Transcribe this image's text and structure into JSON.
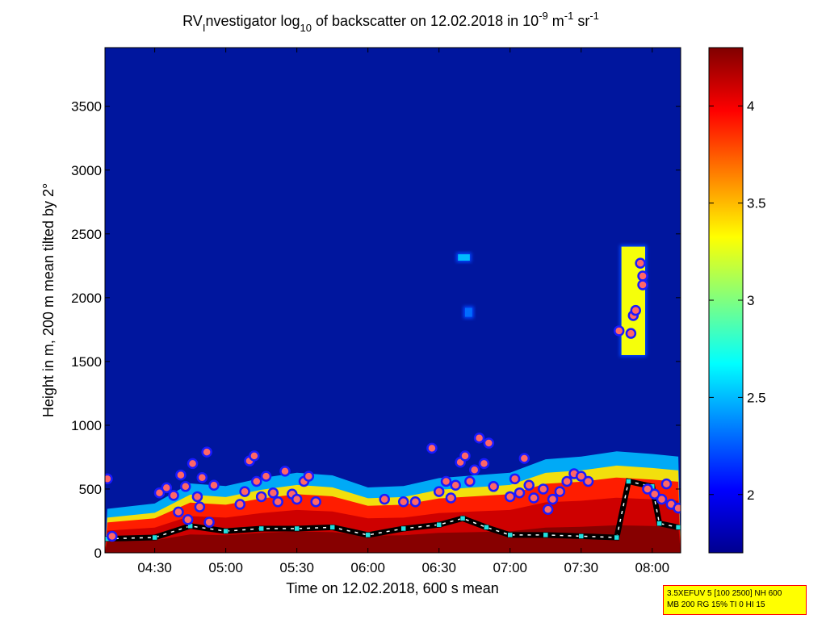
{
  "chart_data": {
    "type": "heatmap",
    "title": {
      "part1": "RV",
      "sub1": "I",
      "part2": "nvestigator log",
      "sub2": "10",
      "part3": " of backscatter on 12.02.2018 in 10",
      "sup1": "-9",
      "part4": " m",
      "sup2": "-1",
      "part5": " sr",
      "sup3": "-1"
    },
    "xlabel": "Time on 12.02.2018, 600 s mean",
    "ylabel": "Height in m, 200 m mean tilted by 2°",
    "xlim": [
      "04:09",
      "08:12"
    ],
    "ylim": [
      0,
      3960
    ],
    "x_ticks": [
      "04:30",
      "05:00",
      "05:30",
      "06:00",
      "06:30",
      "07:00",
      "07:30",
      "08:00"
    ],
    "y_ticks": [
      0,
      500,
      1000,
      1500,
      2000,
      2500,
      3000,
      3500
    ],
    "colorbar": {
      "range": [
        1.7,
        4.3
      ],
      "ticks": [
        "2",
        "2.5",
        "3",
        "3.5",
        "4"
      ],
      "colormap": "jet"
    },
    "background_color": "#00169e",
    "boundary_layer_height_m": [
      {
        "t": "04:10",
        "h": 290
      },
      {
        "t": "04:30",
        "h": 330
      },
      {
        "t": "04:45",
        "h": 480
      },
      {
        "t": "05:00",
        "h": 460
      },
      {
        "t": "05:15",
        "h": 520
      },
      {
        "t": "05:30",
        "h": 560
      },
      {
        "t": "05:45",
        "h": 540
      },
      {
        "t": "06:00",
        "h": 450
      },
      {
        "t": "06:15",
        "h": 460
      },
      {
        "t": "06:30",
        "h": 520
      },
      {
        "t": "06:45",
        "h": 540
      },
      {
        "t": "07:00",
        "h": 560
      },
      {
        "t": "07:15",
        "h": 660
      },
      {
        "t": "07:30",
        "h": 680
      },
      {
        "t": "07:45",
        "h": 720
      },
      {
        "t": "08:00",
        "h": 700
      },
      {
        "t": "08:11",
        "h": 680
      }
    ],
    "layer_markers_m": [
      {
        "t": "04:10",
        "h": 580
      },
      {
        "t": "04:12",
        "h": 130
      },
      {
        "t": "04:32",
        "h": 470
      },
      {
        "t": "04:35",
        "h": 510
      },
      {
        "t": "04:38",
        "h": 450
      },
      {
        "t": "04:40",
        "h": 320
      },
      {
        "t": "04:41",
        "h": 610
      },
      {
        "t": "04:43",
        "h": 520
      },
      {
        "t": "04:44",
        "h": 260
      },
      {
        "t": "04:46",
        "h": 700
      },
      {
        "t": "04:48",
        "h": 440
      },
      {
        "t": "04:49",
        "h": 360
      },
      {
        "t": "04:50",
        "h": 590
      },
      {
        "t": "04:52",
        "h": 790
      },
      {
        "t": "04:53",
        "h": 240
      },
      {
        "t": "04:55",
        "h": 530
      },
      {
        "t": "05:06",
        "h": 380
      },
      {
        "t": "05:08",
        "h": 480
      },
      {
        "t": "05:10",
        "h": 720
      },
      {
        "t": "05:12",
        "h": 760
      },
      {
        "t": "05:13",
        "h": 560
      },
      {
        "t": "05:15",
        "h": 440
      },
      {
        "t": "05:17",
        "h": 600
      },
      {
        "t": "05:20",
        "h": 470
      },
      {
        "t": "05:22",
        "h": 400
      },
      {
        "t": "05:25",
        "h": 640
      },
      {
        "t": "05:28",
        "h": 460
      },
      {
        "t": "05:30",
        "h": 420
      },
      {
        "t": "05:33",
        "h": 560
      },
      {
        "t": "05:35",
        "h": 600
      },
      {
        "t": "05:38",
        "h": 400
      },
      {
        "t": "06:07",
        "h": 420
      },
      {
        "t": "06:15",
        "h": 400
      },
      {
        "t": "06:20",
        "h": 400
      },
      {
        "t": "06:27",
        "h": 820
      },
      {
        "t": "06:30",
        "h": 480
      },
      {
        "t": "06:33",
        "h": 560
      },
      {
        "t": "06:35",
        "h": 430
      },
      {
        "t": "06:37",
        "h": 530
      },
      {
        "t": "06:39",
        "h": 710
      },
      {
        "t": "06:41",
        "h": 760
      },
      {
        "t": "06:43",
        "h": 560
      },
      {
        "t": "06:45",
        "h": 650
      },
      {
        "t": "06:47",
        "h": 900
      },
      {
        "t": "06:49",
        "h": 700
      },
      {
        "t": "06:51",
        "h": 860
      },
      {
        "t": "06:53",
        "h": 520
      },
      {
        "t": "07:00",
        "h": 440
      },
      {
        "t": "07:02",
        "h": 580
      },
      {
        "t": "07:04",
        "h": 470
      },
      {
        "t": "07:06",
        "h": 740
      },
      {
        "t": "07:08",
        "h": 530
      },
      {
        "t": "07:10",
        "h": 430
      },
      {
        "t": "07:14",
        "h": 500
      },
      {
        "t": "07:16",
        "h": 340
      },
      {
        "t": "07:18",
        "h": 420
      },
      {
        "t": "07:21",
        "h": 480
      },
      {
        "t": "07:24",
        "h": 560
      },
      {
        "t": "07:27",
        "h": 620
      },
      {
        "t": "07:30",
        "h": 600
      },
      {
        "t": "07:33",
        "h": 560
      },
      {
        "t": "07:46",
        "h": 1740
      },
      {
        "t": "07:51",
        "h": 1720
      },
      {
        "t": "07:52",
        "h": 1860
      },
      {
        "t": "07:53",
        "h": 1900
      },
      {
        "t": "07:55",
        "h": 2270
      },
      {
        "t": "07:56",
        "h": 2170
      },
      {
        "t": "07:56",
        "h": 2100
      },
      {
        "t": "07:58",
        "h": 500
      },
      {
        "t": "08:01",
        "h": 460
      },
      {
        "t": "08:04",
        "h": 420
      },
      {
        "t": "08:06",
        "h": 540
      },
      {
        "t": "08:08",
        "h": 380
      },
      {
        "t": "08:11",
        "h": 350
      }
    ],
    "cloud_base_m": [
      {
        "t": "04:10",
        "h": 110
      },
      {
        "t": "04:30",
        "h": 120
      },
      {
        "t": "04:45",
        "h": 210
      },
      {
        "t": "05:00",
        "h": 170
      },
      {
        "t": "05:15",
        "h": 190
      },
      {
        "t": "05:30",
        "h": 190
      },
      {
        "t": "05:45",
        "h": 200
      },
      {
        "t": "06:00",
        "h": 140
      },
      {
        "t": "06:15",
        "h": 190
      },
      {
        "t": "06:30",
        "h": 220
      },
      {
        "t": "06:40",
        "h": 270
      },
      {
        "t": "06:50",
        "h": 200
      },
      {
        "t": "07:00",
        "h": 140
      },
      {
        "t": "07:15",
        "h": 140
      },
      {
        "t": "07:30",
        "h": 130
      },
      {
        "t": "07:45",
        "h": 120
      },
      {
        "t": "07:50",
        "h": 560
      },
      {
        "t": "08:00",
        "h": 520
      },
      {
        "t": "08:03",
        "h": 230
      },
      {
        "t": "08:11",
        "h": 200
      }
    ],
    "upper_clouds": [
      {
        "t_start": "06:38",
        "t_end": "06:43",
        "h_low": 2290,
        "h_high": 2340,
        "value": 2.5
      },
      {
        "t_start": "06:41",
        "t_end": "06:44",
        "h_low": 1850,
        "h_high": 1920,
        "value": 2.3
      },
      {
        "t_start": "07:47",
        "t_end": "07:57",
        "h_low": 1550,
        "h_high": 2400,
        "value": 3.3
      }
    ]
  },
  "info_box": {
    "line1": "3.5XEFUV 5 [100 2500] NH 600",
    "line2": "MB 200 RG 15% TI 0 HI 15"
  }
}
